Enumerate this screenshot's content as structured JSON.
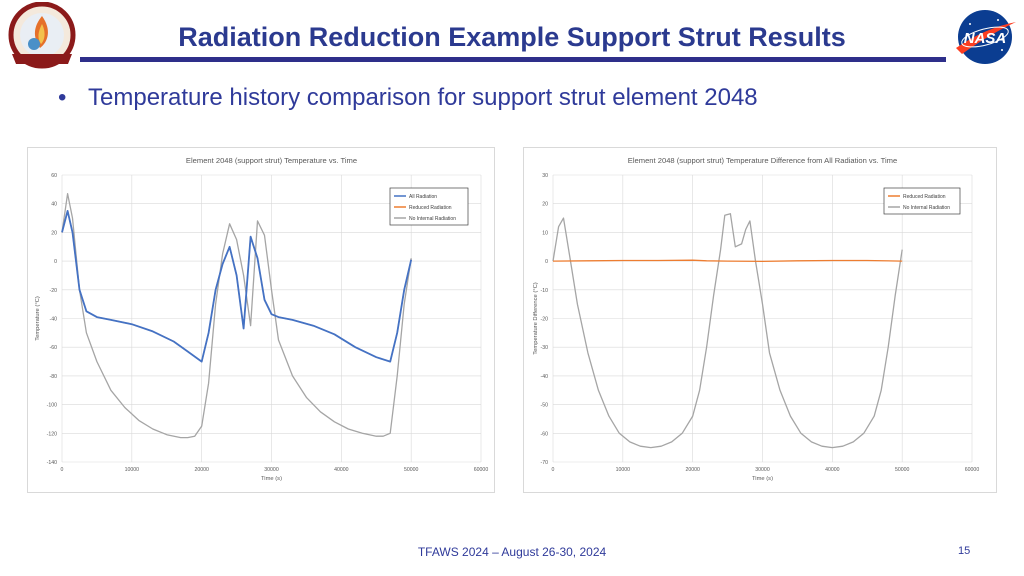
{
  "header": {
    "title": "Radiation Reduction Example Support Strut Results",
    "left_logo_text": "THERMAL & FLUIDS ANALYSIS WORKSHOP",
    "right_logo_text": "NASA",
    "rule_color": "#2e2f8a",
    "title_color": "#2b3a8f"
  },
  "bullet": {
    "symbol": "•",
    "text": "Temperature history comparison for support strut element 2048"
  },
  "chart_data": [
    {
      "type": "line",
      "title": "Element 2048 (support strut) Temperature vs. Time",
      "xlabel": "Time (s)",
      "ylabel": "Temperature (°C)",
      "xlim": [
        0,
        60000
      ],
      "ylim": [
        -140,
        60
      ],
      "xticks": [
        0,
        10000,
        20000,
        30000,
        40000,
        50000,
        60000
      ],
      "yticks": [
        -140,
        -120,
        -100,
        -80,
        -60,
        -40,
        -20,
        0,
        20,
        40,
        60
      ],
      "xtick_labels": [
        "0",
        "10000",
        "20000",
        "30000",
        "40000",
        "50000",
        "60000"
      ],
      "ytick_labels": [
        "-140",
        "-120",
        "-100",
        "-80",
        "-60",
        "-40",
        "-20",
        "0",
        "20",
        "40",
        "60"
      ],
      "grid": true,
      "legend_position": "top-right",
      "series": [
        {
          "name": "All Radiation",
          "color": "#4472c4",
          "x": [
            0,
            800,
            1500,
            2500,
            3500,
            5000,
            7000,
            10000,
            13000,
            16000,
            18000,
            20000,
            21000,
            22000,
            23000,
            24000,
            25000,
            26000,
            27000,
            28000,
            29000,
            30000,
            31000,
            33000,
            36000,
            39000,
            42000,
            45000,
            47000,
            48000,
            49000,
            50000
          ],
          "y": [
            20,
            35,
            20,
            -20,
            -35,
            -39,
            -41,
            -44,
            -49,
            -56,
            -63,
            -70,
            -50,
            -20,
            -2,
            10,
            -10,
            -47,
            17,
            2,
            -27,
            -37,
            -39,
            -41,
            -45,
            -51,
            -60,
            -67,
            -70,
            -50,
            -20,
            1
          ]
        },
        {
          "name": "Reduced Radiation",
          "color": "#ed7d31",
          "x": [
            0,
            800,
            1500,
            2500,
            3500,
            5000,
            7000,
            10000,
            13000,
            16000,
            18000,
            20000,
            21000,
            22000,
            23000,
            24000,
            25000,
            26000,
            27000,
            28000,
            29000,
            30000,
            31000,
            33000,
            36000,
            39000,
            42000,
            45000,
            47000,
            48000,
            49000,
            50000
          ],
          "y": [
            20,
            35,
            20,
            -20,
            -35,
            -39,
            -41,
            -44,
            -49,
            -56,
            -63,
            -70,
            -50,
            -20,
            -2,
            10,
            -10,
            -47,
            17,
            2,
            -27,
            -37,
            -39,
            -41,
            -45,
            -51,
            -60,
            -67,
            -70,
            -50,
            -20,
            1
          ]
        },
        {
          "name": "No Internal Radiation",
          "color": "#a5a5a5",
          "x": [
            0,
            800,
            1500,
            2500,
            3500,
            5000,
            7000,
            9000,
            11000,
            13000,
            15000,
            17000,
            18000,
            19000,
            20000,
            21000,
            22000,
            23000,
            24000,
            25000,
            26000,
            27000,
            28000,
            29000,
            30000,
            31000,
            33000,
            35000,
            37000,
            39000,
            41000,
            43000,
            45000,
            46000,
            47000,
            48000,
            49000,
            50000
          ],
          "y": [
            20,
            47,
            30,
            -20,
            -50,
            -70,
            -90,
            -102,
            -111,
            -117,
            -121,
            -123,
            -123,
            -122,
            -115,
            -85,
            -30,
            5,
            26,
            15,
            -10,
            -45,
            28,
            18,
            -20,
            -55,
            -80,
            -95,
            -105,
            -112,
            -117,
            -120,
            -122,
            -122,
            -120,
            -80,
            -30,
            2
          ]
        }
      ]
    },
    {
      "type": "line",
      "title": "Element 2048 (support strut) Temperature Difference from All Radiation vs. Time",
      "xlabel": "Time (s)",
      "ylabel": "Temperature Difference (°C)",
      "xlim": [
        0,
        60000
      ],
      "ylim": [
        -70,
        30
      ],
      "xticks": [
        0,
        10000,
        20000,
        30000,
        40000,
        50000,
        60000
      ],
      "yticks": [
        -70,
        -60,
        -50,
        -40,
        -30,
        -20,
        -10,
        0,
        10,
        20,
        30
      ],
      "xtick_labels": [
        "0",
        "10000",
        "20000",
        "30000",
        "40000",
        "50000",
        "60000"
      ],
      "ytick_labels": [
        "-70",
        "-60",
        "-50",
        "-40",
        "-30",
        "-20",
        "-10",
        "0",
        "10",
        "20",
        "30"
      ],
      "grid": true,
      "legend_position": "top-right",
      "series": [
        {
          "name": "Reduced Radiation",
          "color": "#ed7d31",
          "x": [
            0,
            5000,
            10000,
            15000,
            20000,
            22000,
            25000,
            30000,
            35000,
            40000,
            45000,
            50000
          ],
          "y": [
            0,
            0.1,
            0.2,
            0.2,
            0.3,
            0.1,
            0,
            -0.1,
            0.1,
            0.2,
            0.2,
            0
          ]
        },
        {
          "name": "No Internal Radiation",
          "color": "#a5a5a5",
          "x": [
            0,
            800,
            1500,
            2500,
            3500,
            5000,
            6500,
            8000,
            9500,
            11000,
            12500,
            14000,
            15500,
            17000,
            18500,
            20000,
            21000,
            22000,
            23000,
            24000,
            24600,
            25400,
            26100,
            27000,
            27600,
            28200,
            29000,
            30000,
            31000,
            32500,
            34000,
            35500,
            37000,
            38500,
            40000,
            41500,
            43000,
            44500,
            46000,
            47000,
            48000,
            49000,
            50000
          ],
          "y": [
            0,
            12,
            15,
            0,
            -15,
            -32,
            -45,
            -54,
            -60,
            -63,
            -64.5,
            -65,
            -64.5,
            -63,
            -60,
            -54,
            -45,
            -30,
            -12,
            4,
            16,
            16.5,
            5,
            6,
            11,
            14,
            0,
            -15,
            -32,
            -45,
            -54,
            -60,
            -63,
            -64.5,
            -65,
            -64.5,
            -63,
            -60,
            -54,
            -45,
            -30,
            -12,
            4
          ]
        }
      ]
    }
  ],
  "footer": {
    "text": "TFAWS 2024 – August 26-30, 2024",
    "page_number": "15"
  }
}
